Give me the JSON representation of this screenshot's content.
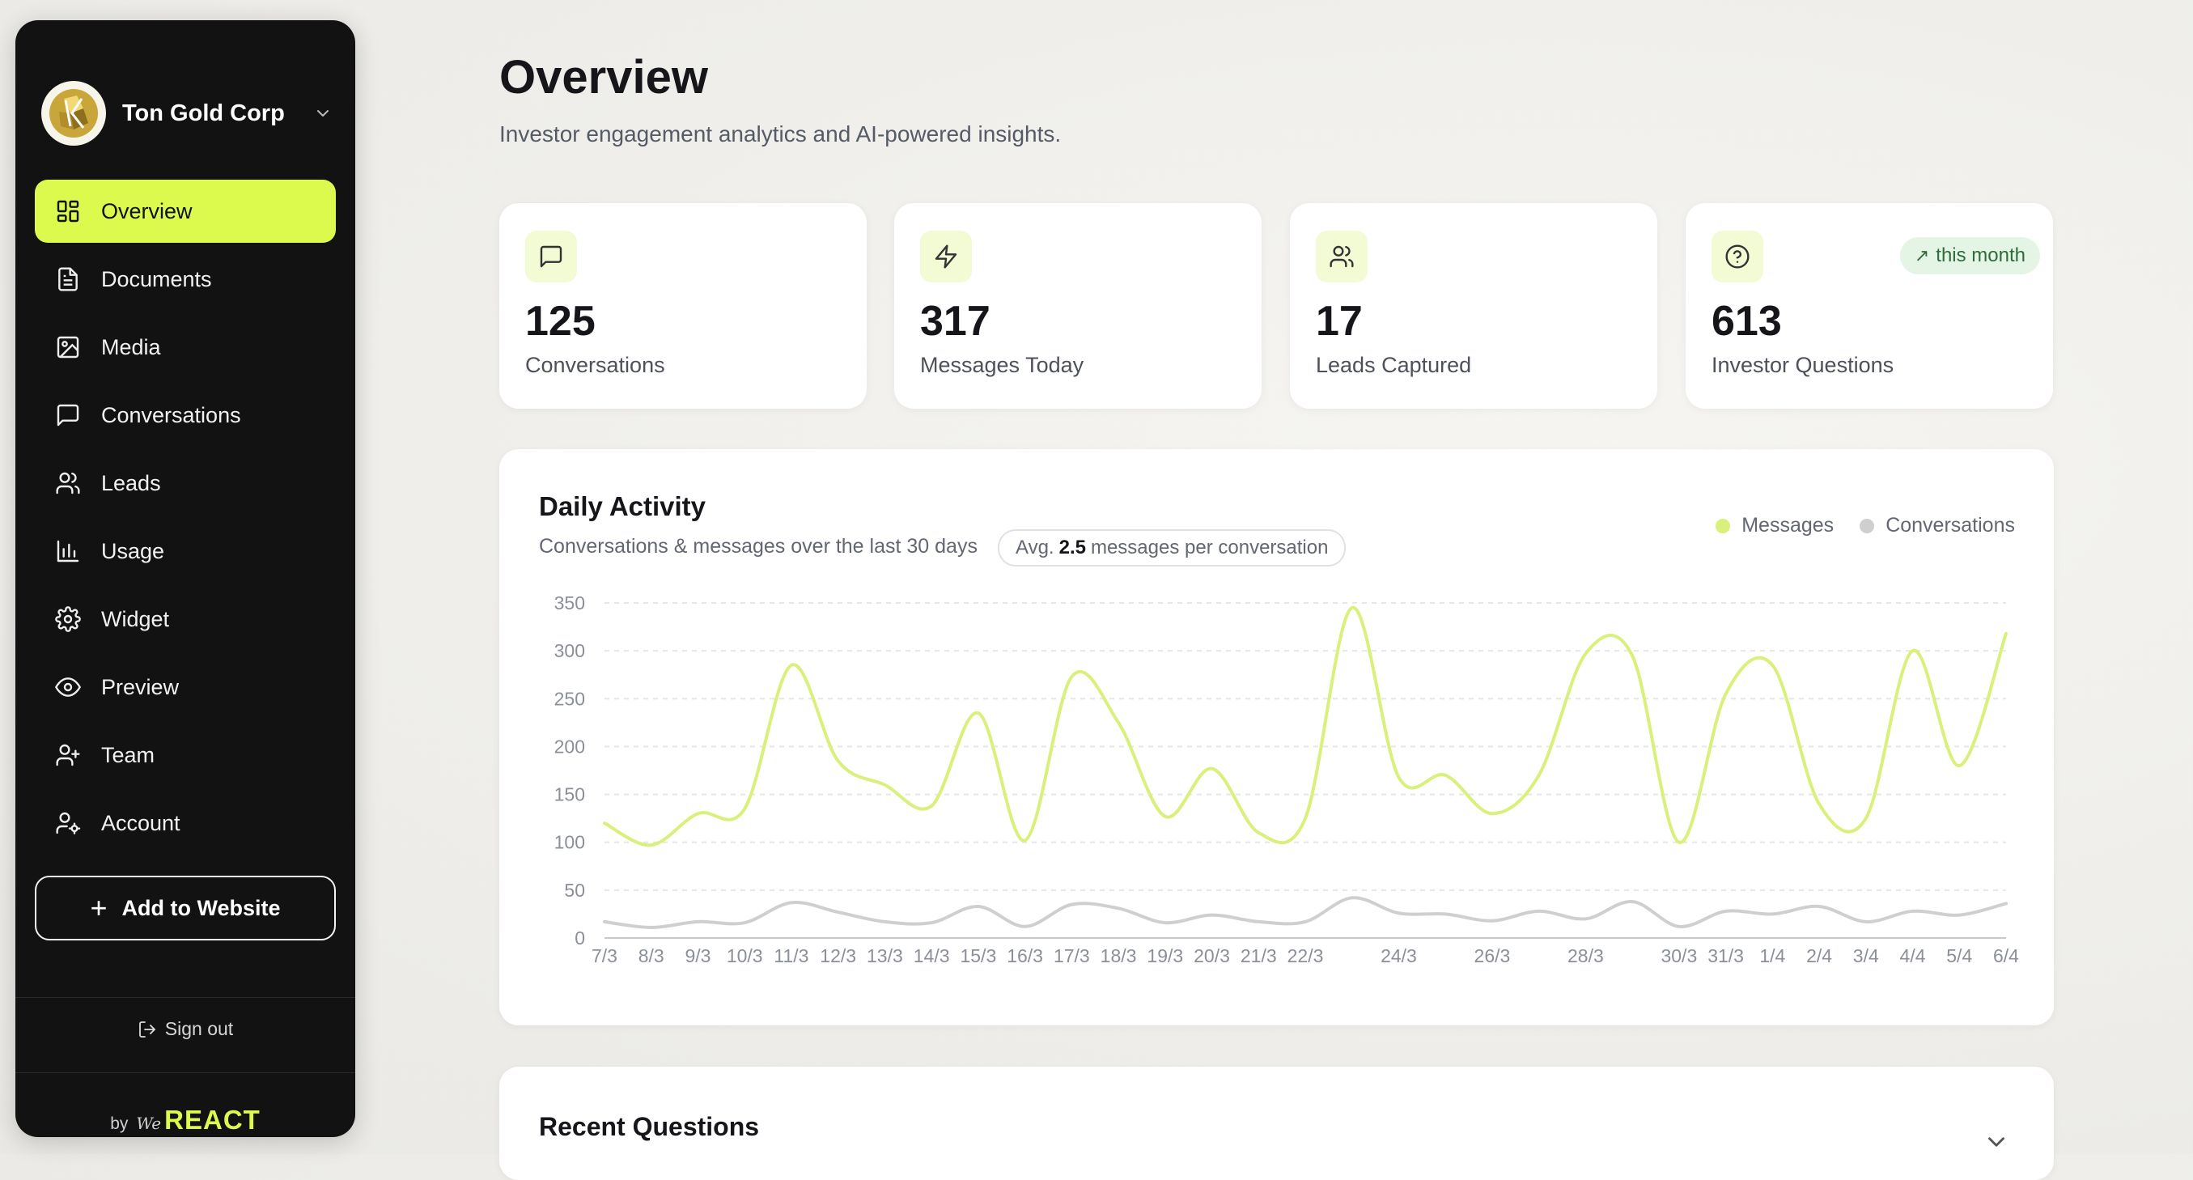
{
  "sidebar": {
    "org_name": "Ton Gold Corp",
    "nav": [
      {
        "label": "Overview",
        "icon": "grid-icon",
        "active": true
      },
      {
        "label": "Documents",
        "icon": "document-icon"
      },
      {
        "label": "Media",
        "icon": "image-icon"
      },
      {
        "label": "Conversations",
        "icon": "chat-icon"
      },
      {
        "label": "Leads",
        "icon": "users-icon"
      },
      {
        "label": "Usage",
        "icon": "bar-chart-icon"
      },
      {
        "label": "Widget",
        "icon": "gear-icon"
      },
      {
        "label": "Preview",
        "icon": "eye-icon"
      },
      {
        "label": "Team",
        "icon": "user-plus-icon"
      },
      {
        "label": "Account",
        "icon": "user-settings-icon"
      }
    ],
    "add_button": "Add to Website",
    "sign_out": "Sign out",
    "by": "by",
    "brand_we": "We",
    "brand_name": "REACT"
  },
  "header": {
    "title": "Overview",
    "subtitle": "Investor engagement analytics and AI-powered insights."
  },
  "stats": [
    {
      "value": "125",
      "label": "Conversations",
      "icon": "chat-icon"
    },
    {
      "value": "317",
      "label": "Messages Today",
      "icon": "lightning-icon"
    },
    {
      "value": "17",
      "label": "Leads Captured",
      "icon": "users-icon"
    },
    {
      "value": "613",
      "label": "Investor Questions",
      "icon": "question-icon",
      "badge": "this month"
    }
  ],
  "activity": {
    "title": "Daily Activity",
    "subtitle": "Conversations & messages over the last 30 days",
    "avg_prefix": "Avg.",
    "avg_value": "2.5",
    "avg_suffix": "messages per conversation"
  },
  "colors": {
    "messages": "#d9f07a",
    "conversations": "#cfcfcf",
    "accent": "#dcfa4e"
  },
  "chart_data": {
    "type": "line",
    "x": [
      "7/3",
      "8/3",
      "9/3",
      "10/3",
      "11/3",
      "12/3",
      "13/3",
      "14/3",
      "15/3",
      "16/3",
      "17/3",
      "18/3",
      "19/3",
      "20/3",
      "21/3",
      "22/3",
      "23/3",
      "24/3",
      "25/3",
      "26/3",
      "27/3",
      "28/3",
      "29/3",
      "30/3",
      "31/3",
      "1/4",
      "2/4",
      "3/4",
      "4/4",
      "5/4",
      "6/4"
    ],
    "x_tick_labels": [
      "7/3",
      "8/3",
      "9/3",
      "10/3",
      "11/3",
      "12/3",
      "13/3",
      "14/3",
      "15/3",
      "16/3",
      "17/3",
      "18/3",
      "19/3",
      "20/3",
      "21/3",
      "22/3",
      "",
      "24/3",
      "",
      "26/3",
      "",
      "28/3",
      "",
      "30/3",
      "31/3",
      "1/4",
      "2/4",
      "3/4",
      "4/4",
      "5/4",
      "6/4"
    ],
    "series": [
      {
        "name": "Messages",
        "values": [
          120,
          97,
          130,
          135,
          285,
          185,
          160,
          138,
          235,
          102,
          273,
          225,
          127,
          177,
          110,
          125,
          345,
          168,
          170,
          130,
          170,
          297,
          295,
          100,
          255,
          285,
          140,
          125,
          300,
          180,
          318
        ]
      },
      {
        "name": "Conversations",
        "values": [
          17,
          11,
          17,
          16,
          37,
          27,
          17,
          16,
          33,
          12,
          35,
          31,
          16,
          24,
          17,
          17,
          42,
          26,
          25,
          18,
          28,
          20,
          38,
          12,
          28,
          25,
          33,
          17,
          28,
          24,
          36
        ]
      }
    ],
    "ylim": [
      0,
      350
    ],
    "yticks": [
      0,
      50,
      100,
      150,
      200,
      250,
      300,
      350
    ],
    "grid": true,
    "legend": "top-right"
  },
  "recent": {
    "title": "Recent Questions"
  }
}
